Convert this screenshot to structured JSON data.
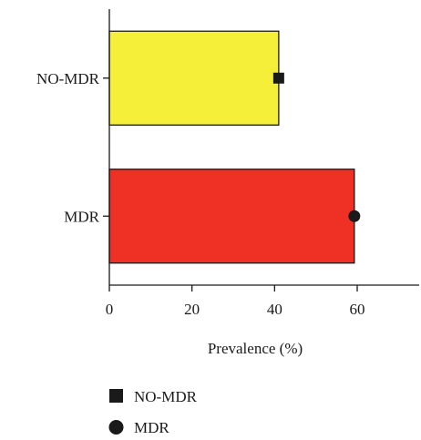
{
  "chart_data": {
    "type": "bar",
    "orientation": "horizontal",
    "categories": [
      "NO-MDR",
      "MDR"
    ],
    "values": [
      41,
      59.3
    ],
    "bar_colors": [
      "#f5ef3a",
      "#ee3124"
    ],
    "markers": [
      {
        "category": "NO-MDR",
        "value": 41,
        "shape": "square"
      },
      {
        "category": "MDR",
        "value": 59.3,
        "shape": "circle"
      }
    ],
    "xlabel": "Prevalence (%)",
    "ylabel": "",
    "title": "",
    "xlim": [
      0,
      75
    ],
    "xticks": [
      0,
      20,
      40,
      60
    ],
    "grid": false,
    "legend": {
      "position": "bottom-left",
      "entries": [
        {
          "label": "NO-MDR",
          "shape": "square"
        },
        {
          "label": "MDR",
          "shape": "circle"
        }
      ]
    }
  }
}
